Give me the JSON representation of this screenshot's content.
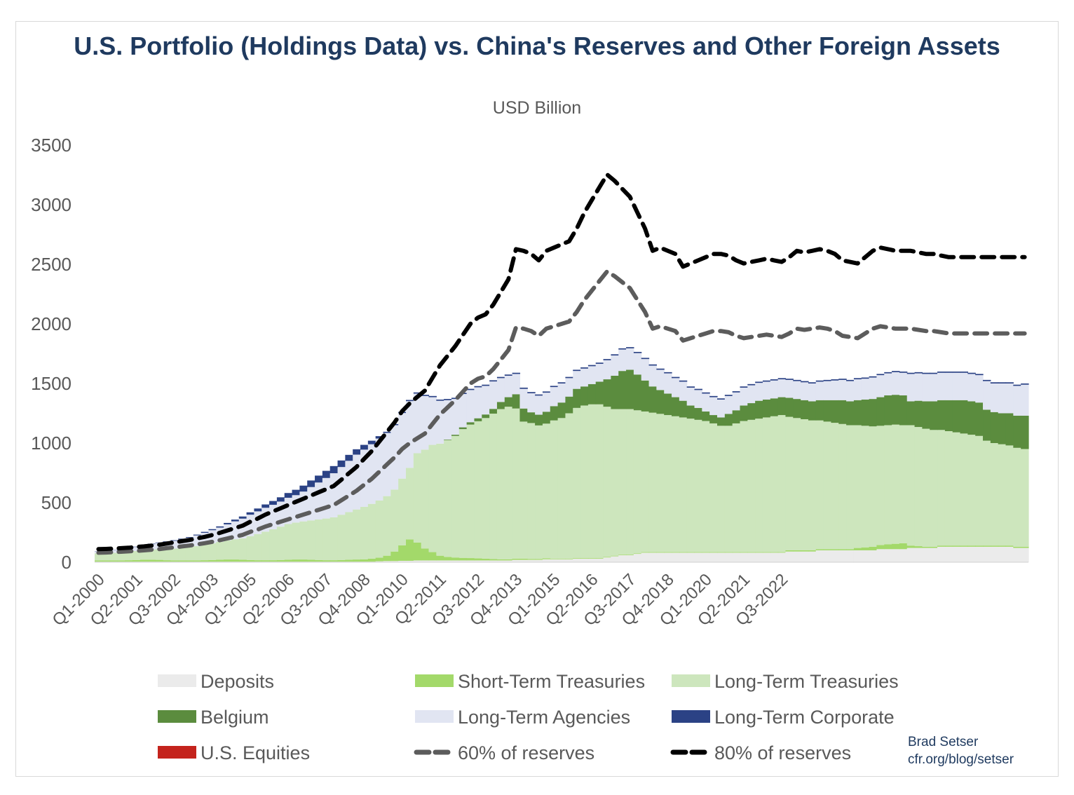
{
  "chart_data": {
    "type": "area",
    "title": "U.S. Portfolio (Holdings Data) vs. China's Reserves and Other Foreign Assets",
    "subtitle": "USD Billion",
    "ylim": [
      0,
      3500
    ],
    "yticks": [
      0,
      500,
      1000,
      1500,
      2000,
      2500,
      3000,
      3500
    ],
    "xtick_labels": [
      "Q1-2000",
      "Q2-2001",
      "Q3-2002",
      "Q4-2003",
      "Q1-2005",
      "Q2-2006",
      "Q3-2007",
      "Q4-2008",
      "Q1-2010",
      "Q2-2011",
      "Q3-2012",
      "Q4-2013",
      "Q1-2015",
      "Q2-2016",
      "Q3-2017",
      "Q4-2018",
      "Q1-2020",
      "Q2-2021",
      "Q3-2022"
    ],
    "x_start": "Q1-2000",
    "x_end": "Q1-2023",
    "grid": false,
    "legend_position": "bottom",
    "colors": {
      "deposits": "#ebebeb",
      "short_term": "#a3d96a",
      "long_term_treasuries": "#cde6bd",
      "belgium": "#5b8c3e",
      "agencies": "#e1e5f2",
      "corporate": "#2b4285",
      "equities": "#c4231c",
      "sixty": "#5c5c5c",
      "eighty": "#000000"
    },
    "series": [
      {
        "name": "Deposits",
        "key": "deposits",
        "kind": "stack",
        "values": [
          5,
          5,
          5,
          5,
          5,
          5,
          5,
          5,
          5,
          5,
          5,
          5,
          5,
          5,
          5,
          5,
          5,
          5,
          5,
          5,
          5,
          5,
          5,
          5,
          5,
          5,
          5,
          5,
          5,
          5,
          5,
          5,
          5,
          5,
          5,
          5,
          5,
          8,
          10,
          10,
          12,
          12,
          15,
          15,
          15,
          15,
          15,
          15,
          15,
          15,
          15,
          15,
          15,
          15,
          15,
          20,
          20,
          20,
          20,
          25,
          25,
          25,
          25,
          30,
          30,
          30,
          30,
          40,
          50,
          60,
          60,
          70,
          80,
          80,
          80,
          80,
          80,
          80,
          80,
          80,
          80,
          80,
          80,
          80,
          80,
          80,
          80,
          80,
          80,
          80,
          80,
          90,
          90,
          90,
          90,
          100,
          100,
          100,
          100,
          100,
          100,
          100,
          100,
          110,
          110,
          110,
          110,
          120,
          120,
          120,
          120,
          130,
          130,
          130,
          130,
          130,
          130,
          130,
          130,
          130,
          130,
          120,
          120
        ]
      },
      {
        "name": "Short-Term Treasuries",
        "key": "short_term",
        "kind": "stack",
        "values": [
          10,
          10,
          10,
          10,
          12,
          14,
          16,
          16,
          15,
          12,
          10,
          10,
          10,
          10,
          12,
          14,
          16,
          18,
          18,
          16,
          14,
          12,
          12,
          12,
          14,
          16,
          18,
          18,
          16,
          14,
          12,
          12,
          14,
          16,
          18,
          20,
          25,
          30,
          45,
          80,
          130,
          180,
          150,
          100,
          70,
          40,
          30,
          25,
          22,
          20,
          18,
          15,
          12,
          10,
          10,
          10,
          10,
          8,
          8,
          8,
          5,
          5,
          5,
          5,
          5,
          5,
          5,
          5,
          5,
          5,
          5,
          5,
          5,
          5,
          5,
          5,
          5,
          5,
          5,
          5,
          5,
          5,
          5,
          5,
          5,
          5,
          5,
          5,
          5,
          5,
          5,
          10,
          10,
          10,
          10,
          10,
          10,
          10,
          10,
          10,
          20,
          25,
          30,
          35,
          40,
          45,
          50,
          20,
          15,
          10,
          10,
          10,
          10,
          10,
          10,
          10,
          10,
          10,
          10,
          10,
          10,
          10,
          10
        ]
      },
      {
        "name": "Long-Term Treasuries",
        "key": "long_term_treasuries",
        "kind": "stack",
        "values": [
          60,
          62,
          64,
          66,
          70,
          75,
          80,
          85,
          90,
          95,
          100,
          105,
          110,
          120,
          130,
          140,
          150,
          160,
          170,
          180,
          200,
          220,
          240,
          260,
          280,
          300,
          310,
          320,
          330,
          340,
          350,
          360,
          380,
          400,
          420,
          440,
          460,
          480,
          500,
          520,
          560,
          600,
          750,
          830,
          900,
          940,
          980,
          1020,
          1080,
          1120,
          1150,
          1180,
          1220,
          1260,
          1280,
          1260,
          1150,
          1140,
          1120,
          1130,
          1160,
          1180,
          1220,
          1260,
          1280,
          1290,
          1290,
          1260,
          1230,
          1220,
          1220,
          1200,
          1180,
          1170,
          1160,
          1150,
          1140,
          1130,
          1120,
          1110,
          1100,
          1080,
          1060,
          1060,
          1080,
          1100,
          1110,
          1120,
          1130,
          1140,
          1150,
          1120,
          1110,
          1100,
          1090,
          1080,
          1070,
          1060,
          1050,
          1040,
          1030,
          1020,
          1010,
          1000,
          1000,
          1000,
          990,
          1010,
          1000,
          990,
          980,
          970,
          960,
          950,
          940,
          930,
          920,
          880,
          860,
          850,
          840,
          830,
          820
        ]
      },
      {
        "name": "Belgium",
        "key": "belgium",
        "kind": "stack",
        "values": [
          0,
          0,
          0,
          0,
          0,
          0,
          0,
          0,
          0,
          0,
          0,
          0,
          0,
          0,
          0,
          0,
          0,
          0,
          0,
          0,
          0,
          0,
          0,
          0,
          0,
          0,
          0,
          0,
          0,
          0,
          0,
          0,
          0,
          0,
          0,
          0,
          0,
          0,
          0,
          0,
          0,
          0,
          0,
          0,
          0,
          0,
          5,
          10,
          15,
          20,
          25,
          30,
          40,
          60,
          80,
          120,
          110,
          90,
          90,
          100,
          120,
          130,
          140,
          160,
          160,
          170,
          190,
          230,
          280,
          320,
          330,
          300,
          260,
          220,
          200,
          180,
          160,
          140,
          110,
          100,
          80,
          70,
          70,
          100,
          110,
          130,
          140,
          150,
          150,
          150,
          150,
          160,
          160,
          160,
          160,
          170,
          180,
          190,
          200,
          200,
          210,
          220,
          230,
          240,
          250,
          250,
          250,
          200,
          220,
          230,
          240,
          250,
          260,
          270,
          280,
          280,
          280,
          260,
          260,
          260,
          270,
          270,
          280
        ]
      },
      {
        "name": "Long-Term Agencies",
        "key": "agencies",
        "kind": "stack",
        "values": [
          15,
          18,
          22,
          25,
          30,
          34,
          40,
          46,
          52,
          58,
          65,
          72,
          80,
          90,
          100,
          110,
          120,
          135,
          150,
          165,
          180,
          190,
          200,
          205,
          210,
          220,
          230,
          250,
          280,
          310,
          340,
          370,
          400,
          430,
          460,
          480,
          500,
          520,
          530,
          540,
          550,
          560,
          500,
          450,
          400,
          360,
          330,
          300,
          280,
          270,
          260,
          240,
          230,
          200,
          180,
          170,
          165,
          160,
          160,
          160,
          160,
          160,
          155,
          150,
          150,
          150,
          150,
          160,
          170,
          180,
          180,
          180,
          180,
          175,
          170,
          170,
          160,
          160,
          150,
          150,
          150,
          150,
          150,
          150,
          150,
          150,
          150,
          150,
          150,
          150,
          150,
          150,
          150,
          150,
          150,
          155,
          160,
          165,
          170,
          170,
          175,
          175,
          180,
          185,
          185,
          190,
          190,
          230,
          230,
          230,
          230,
          230,
          230,
          230,
          230,
          230,
          230,
          240,
          240,
          250,
          250,
          250,
          260
        ]
      },
      {
        "name": "Long-Term Corporate",
        "key": "corporate",
        "kind": "stack",
        "values": [
          2,
          2,
          2,
          2,
          3,
          3,
          3,
          4,
          4,
          5,
          5,
          6,
          6,
          7,
          8,
          9,
          10,
          12,
          15,
          18,
          20,
          24,
          28,
          32,
          36,
          40,
          45,
          50,
          55,
          58,
          60,
          60,
          55,
          50,
          45,
          40,
          30,
          20,
          10,
          10,
          10,
          10,
          10,
          10,
          10,
          10,
          10,
          10,
          10,
          10,
          10,
          10,
          10,
          10,
          10,
          10,
          10,
          10,
          10,
          10,
          10,
          10,
          10,
          10,
          10,
          10,
          10,
          10,
          10,
          10,
          10,
          10,
          10,
          10,
          10,
          10,
          10,
          10,
          10,
          10,
          10,
          10,
          10,
          10,
          10,
          10,
          10,
          10,
          10,
          10,
          10,
          10,
          10,
          10,
          10,
          10,
          10,
          10,
          10,
          10,
          10,
          10,
          10,
          10,
          10,
          10,
          10,
          10,
          10,
          10,
          10,
          10,
          10,
          10,
          10,
          10,
          10,
          10,
          10,
          10,
          10,
          10,
          10
        ]
      },
      {
        "name": "U.S. Equities",
        "key": "equities",
        "kind": "stack",
        "values": [
          0,
          0,
          0,
          0,
          0,
          0,
          0,
          0,
          0,
          0,
          0,
          0,
          0,
          0,
          0,
          0,
          0,
          0,
          0,
          0,
          0,
          0,
          0,
          0,
          0,
          0,
          0,
          0,
          0,
          0,
          0,
          0,
          0,
          0,
          0,
          0,
          0,
          0,
          0,
          0,
          0,
          0,
          0,
          0,
          0,
          0,
          0,
          0,
          0,
          0,
          0,
          0,
          0,
          0,
          0,
          0,
          0,
          0,
          0,
          0,
          0,
          0,
          0,
          0,
          0,
          0,
          0,
          0,
          0,
          0,
          0,
          0,
          0,
          0,
          0,
          0,
          0,
          0,
          0,
          0,
          0,
          0,
          0,
          0,
          0,
          0,
          0,
          0,
          0,
          0,
          0,
          0,
          0,
          0,
          0,
          0,
          0,
          0,
          0,
          0,
          0,
          0,
          0,
          0,
          0,
          0,
          0,
          0,
          0,
          0,
          0,
          0,
          0,
          0,
          0,
          0,
          0,
          0,
          0,
          0,
          0,
          0,
          0
        ]
      },
      {
        "name": "60% of reserves",
        "key": "sixty",
        "kind": "line",
        "values": [
          80,
          82,
          85,
          88,
          92,
          96,
          100,
          105,
          110,
          118,
          125,
          133,
          140,
          150,
          160,
          172,
          185,
          200,
          215,
          230,
          255,
          275,
          300,
          320,
          340,
          360,
          380,
          400,
          420,
          440,
          460,
          480,
          520,
          560,
          600,
          650,
          700,
          760,
          820,
          880,
          950,
          1000,
          1040,
          1080,
          1160,
          1240,
          1300,
          1360,
          1430,
          1500,
          1540,
          1560,
          1620,
          1700,
          1780,
          1970,
          1960,
          1940,
          1900,
          1960,
          1980,
          2000,
          2020,
          2100,
          2200,
          2280,
          2360,
          2440,
          2400,
          2350,
          2300,
          2200,
          2100,
          1960,
          1980,
          1960,
          1940,
          1860,
          1880,
          1900,
          1920,
          1940,
          1940,
          1930,
          1900,
          1880,
          1890,
          1900,
          1910,
          1900,
          1890,
          1920,
          1960,
          1950,
          1960,
          1970,
          1960,
          1940,
          1900,
          1890,
          1880,
          1920,
          1960,
          1980,
          1970,
          1960,
          1960,
          1960,
          1950,
          1940,
          1940,
          1930,
          1920,
          1920,
          1920,
          1920,
          1920,
          1920,
          1920,
          1920,
          1920,
          1920,
          1920
        ]
      },
      {
        "name": "80% of reserves",
        "key": "eighty",
        "kind": "line",
        "values": [
          110,
          112,
          115,
          118,
          122,
          128,
          133,
          140,
          147,
          157,
          167,
          177,
          187,
          200,
          213,
          229,
          247,
          267,
          287,
          307,
          340,
          367,
          400,
          427,
          453,
          480,
          507,
          533,
          560,
          587,
          613,
          640,
          693,
          747,
          800,
          867,
          933,
          1013,
          1093,
          1173,
          1267,
          1333,
          1387,
          1440,
          1547,
          1653,
          1733,
          1813,
          1907,
          2000,
          2053,
          2080,
          2160,
          2267,
          2373,
          2627,
          2613,
          2587,
          2533,
          2613,
          2640,
          2667,
          2693,
          2800,
          2933,
          3040,
          3147,
          3253,
          3200,
          3133,
          3067,
          2933,
          2800,
          2613,
          2640,
          2613,
          2587,
          2480,
          2507,
          2533,
          2560,
          2587,
          2587,
          2573,
          2533,
          2507,
          2520,
          2533,
          2547,
          2533,
          2520,
          2560,
          2613,
          2600,
          2613,
          2627,
          2613,
          2587,
          2533,
          2520,
          2507,
          2560,
          2613,
          2640,
          2627,
          2613,
          2613,
          2613,
          2600,
          2587,
          2587,
          2573,
          2560,
          2560,
          2560,
          2560,
          2560,
          2560,
          2560,
          2560,
          2560,
          2560,
          2560
        ]
      }
    ]
  },
  "legend": [
    {
      "label": "Deposits",
      "key": "deposits",
      "style": "box"
    },
    {
      "label": "Short-Term Treasuries",
      "key": "short_term",
      "style": "box"
    },
    {
      "label": "Long-Term Treasuries",
      "key": "long_term_treasuries",
      "style": "box"
    },
    {
      "label": "Belgium",
      "key": "belgium",
      "style": "box"
    },
    {
      "label": "Long-Term Agencies",
      "key": "agencies",
      "style": "box"
    },
    {
      "label": "Long-Term Corporate",
      "key": "corporate",
      "style": "box"
    },
    {
      "label": "U.S. Equities",
      "key": "equities",
      "style": "box"
    },
    {
      "label": "60% of reserves",
      "key": "sixty",
      "style": "dash"
    },
    {
      "label": "80% of reserves",
      "key": "eighty",
      "style": "dash"
    }
  ],
  "credit": {
    "author": "Brad Setser",
    "url": "cfr.org/blog/setser"
  }
}
